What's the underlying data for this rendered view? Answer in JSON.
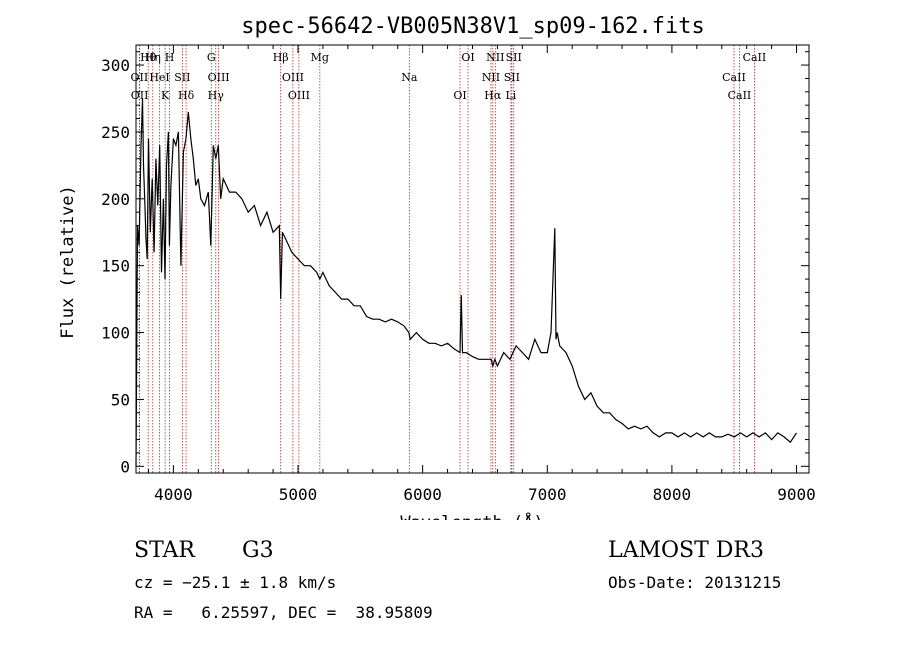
{
  "chart_data": {
    "type": "line",
    "title": "spec-56642-VB005N38V1_sp09-162.fits",
    "xlabel": "Wavelength (Å)",
    "ylabel": "Flux (relative)",
    "xlim": [
      3700,
      9100
    ],
    "ylim": [
      -5,
      315
    ],
    "xticks": [
      4000,
      5000,
      6000,
      7000,
      8000,
      9000
    ],
    "yticks": [
      0,
      50,
      100,
      150,
      200,
      250,
      300
    ],
    "x_tick_labels": [
      "4000",
      "5000",
      "6000",
      "7000",
      "8000",
      "9000"
    ],
    "y_tick_labels": [
      "0",
      "50",
      "100",
      "150",
      "200",
      "250",
      "300"
    ],
    "series": [
      {
        "name": "spectrum",
        "color": "#000000",
        "x": [
          3700,
          3712,
          3725,
          3740,
          3752,
          3760,
          3770,
          3780,
          3790,
          3800,
          3815,
          3830,
          3845,
          3860,
          3875,
          3890,
          3905,
          3920,
          3933,
          3945,
          3960,
          3968,
          3980,
          4000,
          4020,
          4040,
          4060,
          4080,
          4101,
          4120,
          4140,
          4160,
          4180,
          4200,
          4220,
          4250,
          4280,
          4300,
          4320,
          4340,
          4360,
          4380,
          4400,
          4450,
          4500,
          4550,
          4600,
          4650,
          4700,
          4750,
          4800,
          4850,
          4861,
          4875,
          4900,
          4950,
          5000,
          5050,
          5100,
          5150,
          5175,
          5200,
          5250,
          5300,
          5350,
          5400,
          5450,
          5500,
          5550,
          5600,
          5650,
          5700,
          5750,
          5800,
          5850,
          5890,
          5900,
          5950,
          6000,
          6050,
          6100,
          6150,
          6200,
          6250,
          6300,
          6310,
          6320,
          6350,
          6400,
          6450,
          6500,
          6550,
          6563,
          6580,
          6600,
          6650,
          6700,
          6750,
          6800,
          6850,
          6900,
          6950,
          7000,
          7030,
          7060,
          7070,
          7080,
          7100,
          7150,
          7200,
          7250,
          7300,
          7350,
          7400,
          7450,
          7500,
          7550,
          7600,
          7650,
          7700,
          7750,
          7800,
          7850,
          7900,
          7950,
          8000,
          8050,
          8100,
          8150,
          8200,
          8250,
          8300,
          8350,
          8400,
          8450,
          8500,
          8550,
          8600,
          8650,
          8700,
          8750,
          8800,
          8850,
          8900,
          8950,
          9000
        ],
        "values": [
          0,
          180,
          165,
          240,
          275,
          225,
          200,
          170,
          155,
          245,
          175,
          215,
          160,
          230,
          195,
          240,
          145,
          200,
          140,
          225,
          250,
          165,
          210,
          245,
          240,
          250,
          150,
          235,
          245,
          265,
          245,
          230,
          210,
          215,
          200,
          195,
          205,
          165,
          240,
          230,
          240,
          200,
          215,
          205,
          205,
          200,
          190,
          195,
          180,
          190,
          175,
          180,
          125,
          175,
          170,
          160,
          155,
          150,
          150,
          145,
          140,
          145,
          135,
          130,
          125,
          125,
          120,
          120,
          112,
          110,
          110,
          108,
          110,
          108,
          105,
          100,
          95,
          100,
          95,
          92,
          92,
          90,
          92,
          88,
          85,
          128,
          85,
          85,
          82,
          80,
          80,
          80,
          75,
          80,
          75,
          85,
          80,
          90,
          85,
          80,
          95,
          85,
          85,
          100,
          178,
          95,
          100,
          90,
          85,
          75,
          60,
          50,
          55,
          45,
          40,
          40,
          35,
          32,
          28,
          30,
          28,
          30,
          25,
          22,
          25,
          25,
          22,
          25,
          22,
          25,
          22,
          25,
          22,
          22,
          24,
          22,
          25,
          22,
          25,
          22,
          25,
          20,
          25,
          22,
          18,
          25
        ]
      }
    ],
    "lines": [
      {
        "name": "Hθ",
        "x": 3798
      },
      {
        "name": "OII",
        "x": 3727
      },
      {
        "name": "OII",
        "x": 3729
      },
      {
        "name": "Hη",
        "x": 3835
      },
      {
        "name": "HeI",
        "x": 3889
      },
      {
        "name": "K",
        "x": 3934
      },
      {
        "name": "H",
        "x": 3969
      },
      {
        "name": "SII",
        "x": 4072
      },
      {
        "name": "Hδ",
        "x": 4102
      },
      {
        "name": "G",
        "x": 4304
      },
      {
        "name": "OIII",
        "x": 4363
      },
      {
        "name": "Hγ",
        "x": 4340
      },
      {
        "name": "Hβ",
        "x": 4861
      },
      {
        "name": "OIII",
        "x": 4959
      },
      {
        "name": "OIII",
        "x": 5007
      },
      {
        "name": "Mg",
        "x": 5175
      },
      {
        "name": "Na",
        "x": 5893
      },
      {
        "name": "OI",
        "x": 6300
      },
      {
        "name": "OI",
        "x": 6364
      },
      {
        "name": "NII",
        "x": 6548
      },
      {
        "name": "Hα",
        "x": 6563
      },
      {
        "name": "NII",
        "x": 6583
      },
      {
        "name": "SII",
        "x": 6716
      },
      {
        "name": "Li",
        "x": 6708
      },
      {
        "name": "SII",
        "x": 6731
      },
      {
        "name": "CaII",
        "x": 8498
      },
      {
        "name": "CaII",
        "x": 8542
      },
      {
        "name": "CaII",
        "x": 8662
      }
    ],
    "line_color": "#b03030"
  },
  "info": {
    "class": "STAR",
    "subclass": "G3",
    "survey": "LAMOST DR3",
    "cz": "cz = −25.1 ± 1.8 km/s",
    "obs_date": "Obs-Date: 20131215",
    "radec": "RA =   6.25597, DEC =  38.95809"
  }
}
